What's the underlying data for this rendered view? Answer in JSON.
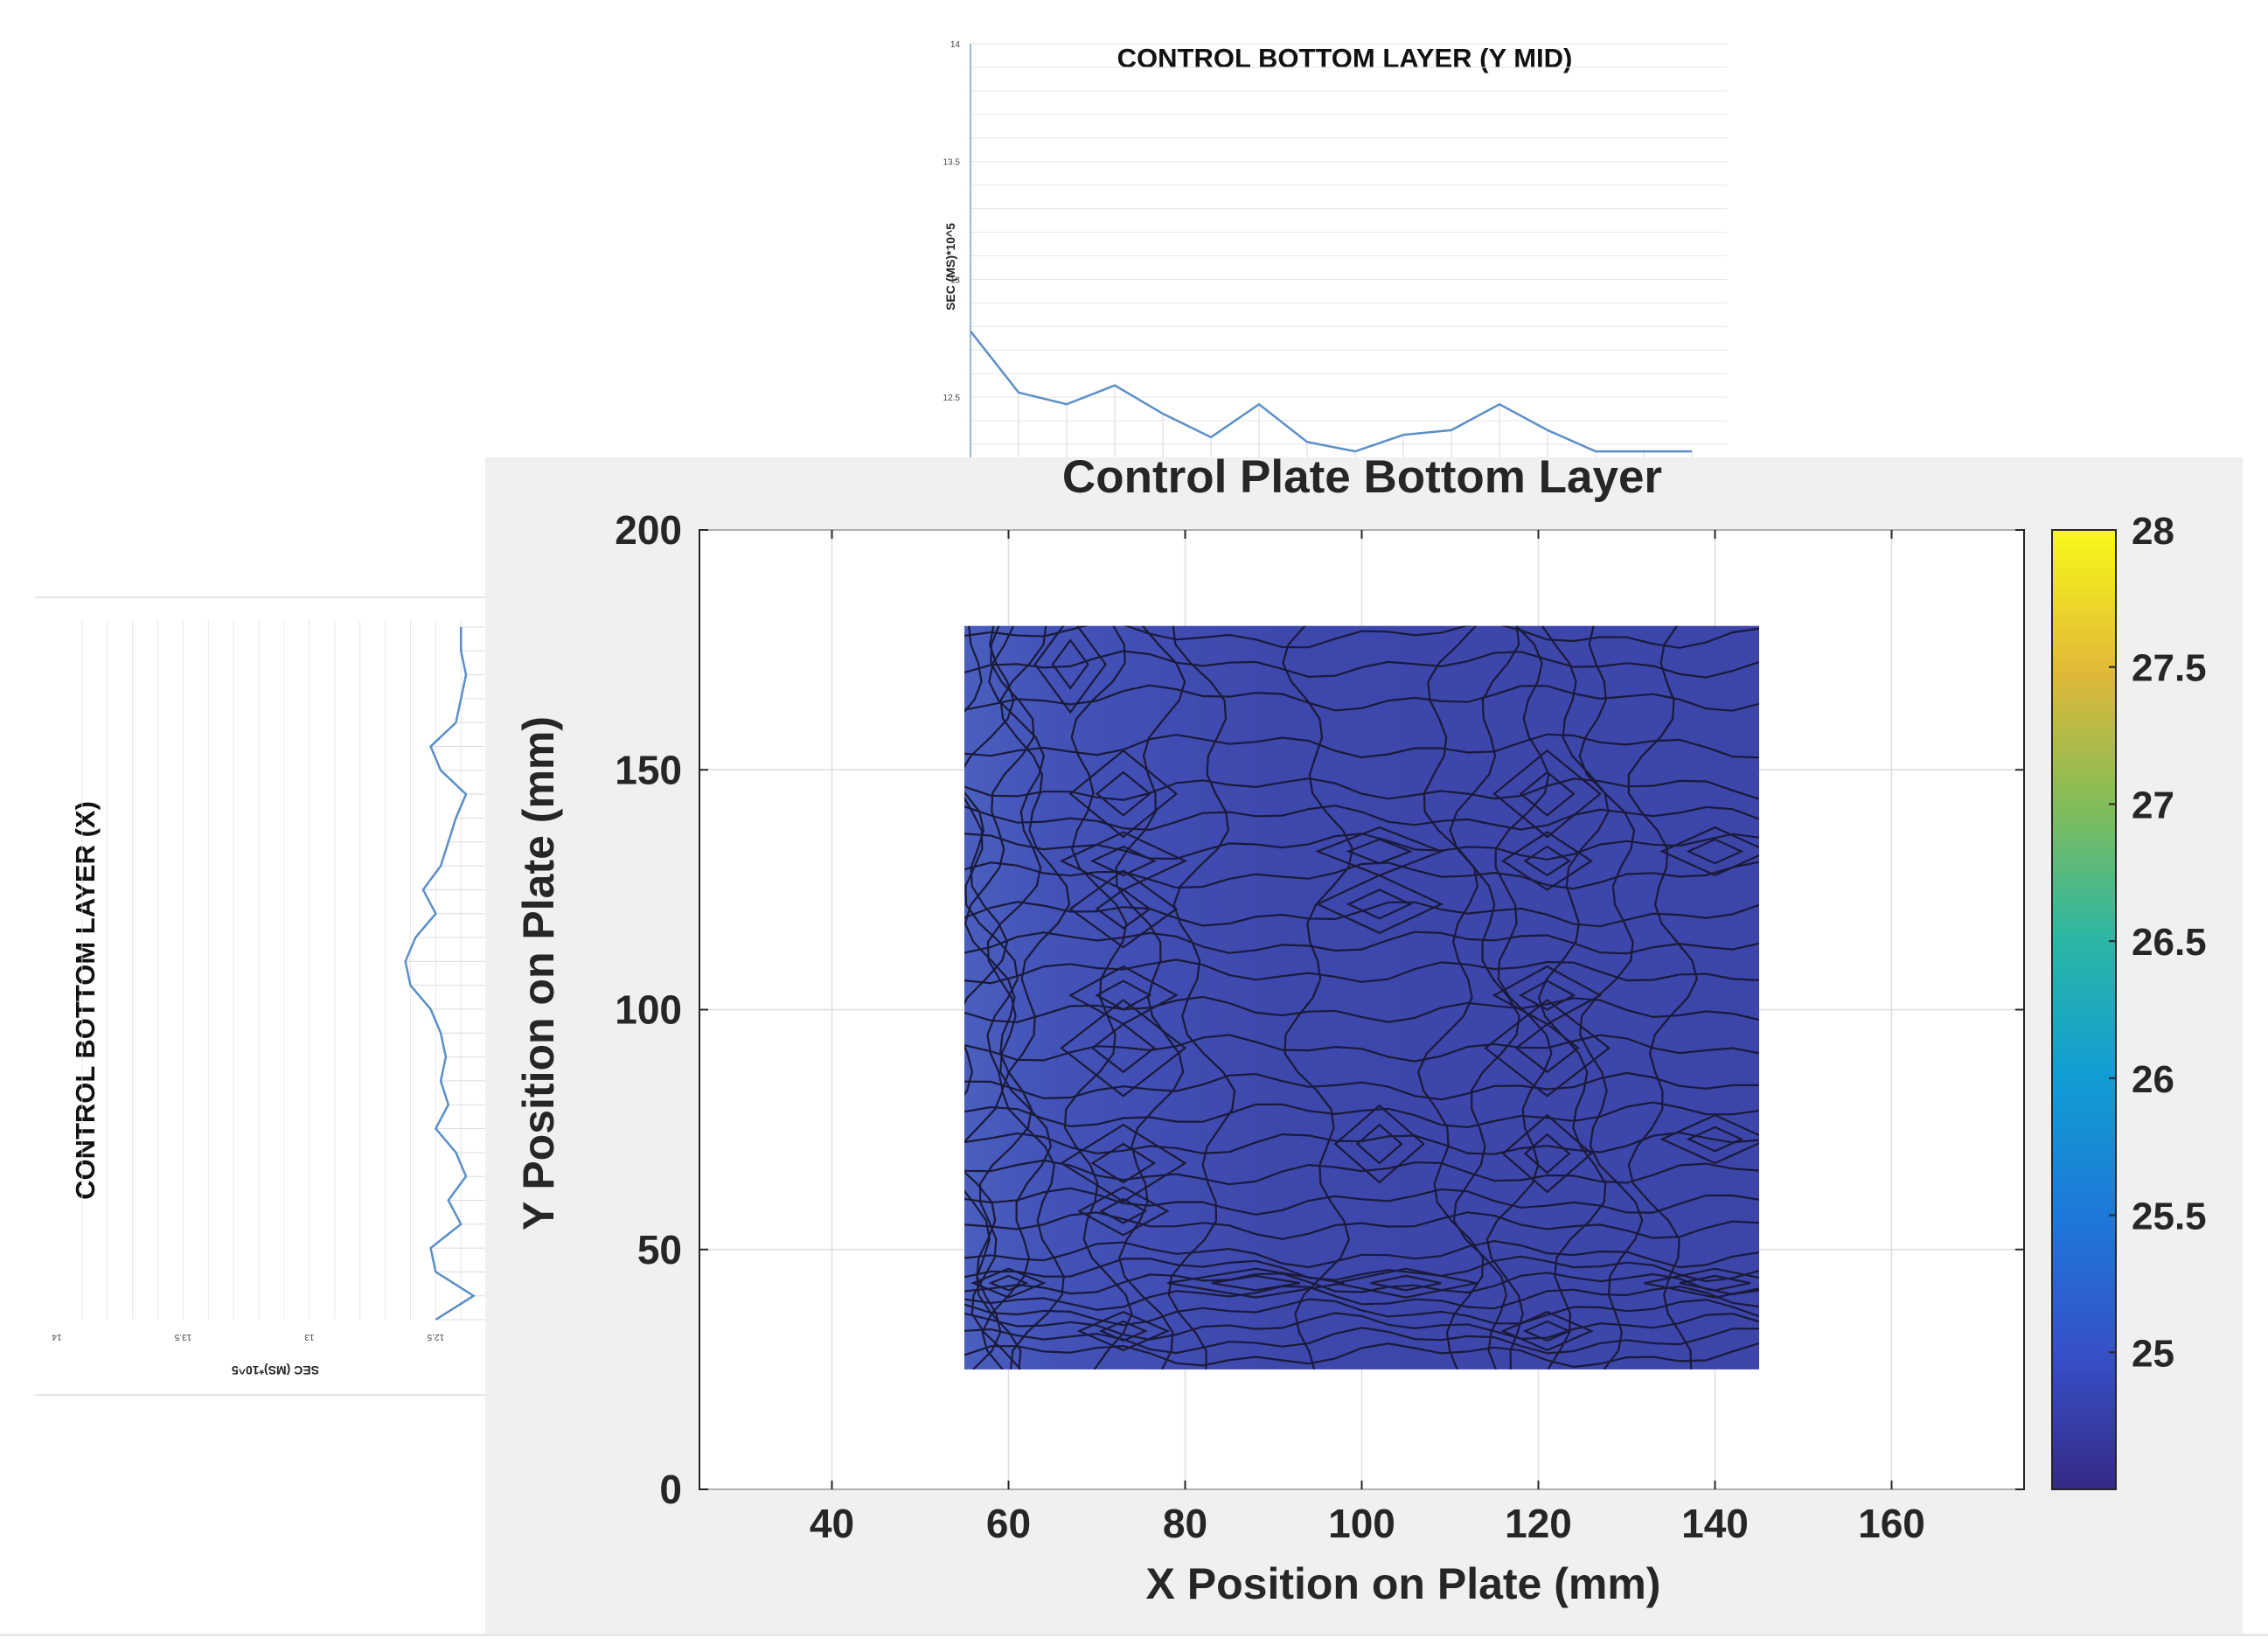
{
  "charts": {
    "top": {
      "title": "CONTROL BOTTOM LAYER (Y MID)",
      "ylabel": "SEC (MS)*10^5",
      "yticks": [
        "14",
        "13.5",
        "13",
        "12.5"
      ]
    },
    "left": {
      "title": "CONTROL BOTTOM LAYER (X)",
      "xlabel": "SEC (MS)*10^5",
      "xticks": [
        "14",
        "13.5",
        "13",
        "12.5"
      ]
    },
    "main": {
      "title": "Control Plate Bottom Layer",
      "xlabel": "X Position on Plate (mm)",
      "ylabel": "Y Position on Plate (mm)",
      "xticks": [
        "40",
        "60",
        "80",
        "100",
        "120",
        "140",
        "160"
      ],
      "yticks": [
        "0",
        "50",
        "100",
        "150",
        "200"
      ],
      "colorbar_ticks": [
        "25",
        "25.5",
        "26",
        "26.5",
        "27",
        "27.5",
        "28"
      ]
    }
  },
  "chart_data": [
    {
      "type": "line",
      "title": "CONTROL BOTTOM LAYER (Y MID)",
      "ylabel": "SEC (MS)*10^5",
      "ylim": [
        12.2,
        14
      ],
      "x": [
        1,
        2,
        3,
        4,
        5,
        6,
        7,
        8,
        9,
        10,
        11,
        12,
        13,
        14,
        15,
        16
      ],
      "values": [
        12.78,
        12.52,
        12.47,
        12.55,
        12.43,
        12.33,
        12.47,
        12.31,
        12.27,
        12.34,
        12.36,
        12.47,
        12.36,
        12.27,
        12.27,
        12.27
      ],
      "grid": true
    },
    {
      "type": "line",
      "title": "CONTROL BOTTOM LAYER (X)",
      "xlabel": "SEC (MS)*10^5",
      "orientation": "vertical",
      "xlim": [
        14,
        12.2
      ],
      "positions": [
        1,
        2,
        3,
        4,
        5,
        6,
        7,
        8,
        9,
        10,
        11,
        12,
        13,
        14,
        15,
        16,
        17,
        18,
        19,
        20,
        21,
        22,
        23,
        24,
        25,
        26,
        27,
        28,
        29,
        30
      ],
      "values": [
        12.4,
        12.4,
        12.38,
        12.4,
        12.42,
        12.52,
        12.48,
        12.38,
        12.42,
        12.45,
        12.48,
        12.55,
        12.5,
        12.58,
        12.62,
        12.6,
        12.52,
        12.48,
        12.46,
        12.48,
        12.45,
        12.5,
        12.42,
        12.38,
        12.45,
        12.4,
        12.52,
        12.5,
        12.35,
        12.5
      ],
      "grid": true
    },
    {
      "type": "heatmap",
      "subtype": "filled-contour",
      "title": "Control Plate Bottom Layer",
      "xlabel": "X Position on Plate (mm)",
      "ylabel": "Y Position on Plate (mm)",
      "xlim": [
        25,
        175
      ],
      "ylim": [
        0,
        200
      ],
      "colorbar": {
        "min": 24.5,
        "max": 28,
        "ticks": [
          25,
          25.5,
          26,
          26.5,
          27,
          27.5,
          28
        ],
        "colormap": "parula"
      },
      "x": [
        55,
        61,
        67,
        73,
        79,
        85,
        91,
        97,
        103,
        109,
        115,
        121,
        127,
        133,
        139,
        145
      ],
      "y": [
        25,
        32,
        39,
        46,
        53,
        60,
        67,
        74,
        81,
        88,
        95,
        102,
        109,
        116,
        123,
        130,
        137,
        144,
        151,
        158,
        165,
        172,
        180
      ],
      "z_range": [
        24.6,
        25.3
      ],
      "grid": true
    }
  ]
}
